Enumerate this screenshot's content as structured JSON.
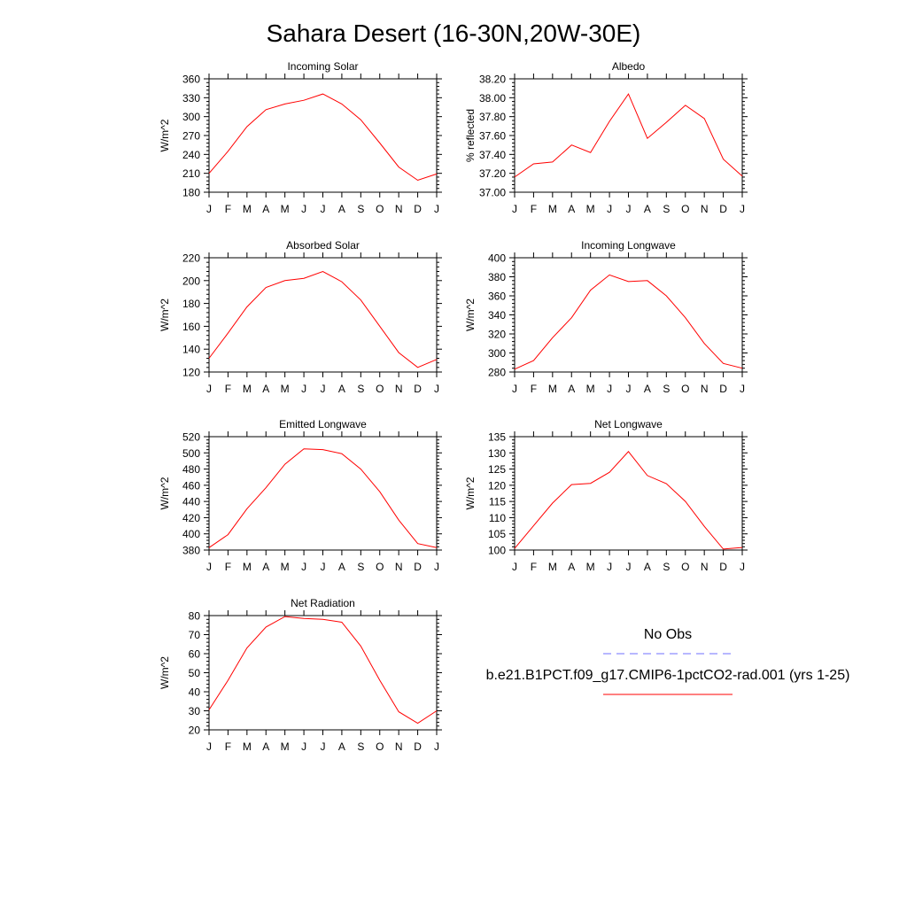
{
  "title": "Sahara Desert (16-30N,20W-30E)",
  "colors": {
    "model": "#ff0000",
    "obs": "#6f6fff",
    "axis": "#000000"
  },
  "legend": {
    "obs_label": "No Obs",
    "model_label": "b.e21.B1PCT.f09_g17.CMIP6-1pctCO2-rad.001 (yrs 1-25)"
  },
  "chart_data": [
    {
      "type": "line",
      "title": "Incoming Solar",
      "ylabel": "W/m^2",
      "categories": [
        "J",
        "F",
        "M",
        "A",
        "M",
        "J",
        "J",
        "A",
        "S",
        "O",
        "N",
        "D",
        "J"
      ],
      "ylim": [
        180,
        360
      ],
      "yticks": [
        "180",
        "210",
        "240",
        "270",
        "300",
        "330",
        "360"
      ],
      "series": [
        {
          "values": [
            210,
            245,
            284,
            311,
            320,
            326,
            336,
            320,
            295,
            258,
            220,
            199,
            209
          ]
        }
      ]
    },
    {
      "type": "line",
      "title": "Albedo",
      "ylabel": "% reflected",
      "categories": [
        "J",
        "F",
        "M",
        "A",
        "M",
        "J",
        "J",
        "A",
        "S",
        "O",
        "N",
        "D",
        "J"
      ],
      "ylim": [
        37.0,
        38.2
      ],
      "yticks": [
        "37.00",
        "37.20",
        "37.40",
        "37.60",
        "37.80",
        "38.00",
        "38.20"
      ],
      "series": [
        {
          "values": [
            37.16,
            37.3,
            37.32,
            37.5,
            37.42,
            37.75,
            38.04,
            37.57,
            37.74,
            37.92,
            37.78,
            37.35,
            37.17
          ]
        }
      ]
    },
    {
      "type": "line",
      "title": "Absorbed Solar",
      "ylabel": "W/m^2",
      "categories": [
        "J",
        "F",
        "M",
        "A",
        "M",
        "J",
        "J",
        "A",
        "S",
        "O",
        "N",
        "D",
        "J"
      ],
      "ylim": [
        120,
        220
      ],
      "yticks": [
        "120",
        "140",
        "160",
        "180",
        "200",
        "220"
      ],
      "series": [
        {
          "values": [
            132,
            154,
            177,
            194,
            200,
            202,
            208,
            199,
            183,
            160,
            137,
            124,
            131
          ]
        }
      ]
    },
    {
      "type": "line",
      "title": "Incoming Longwave",
      "ylabel": "W/m^2",
      "categories": [
        "J",
        "F",
        "M",
        "A",
        "M",
        "J",
        "J",
        "A",
        "S",
        "O",
        "N",
        "D",
        "J"
      ],
      "ylim": [
        280,
        400
      ],
      "yticks": [
        "280",
        "300",
        "320",
        "340",
        "360",
        "380",
        "400"
      ],
      "series": [
        {
          "values": [
            283,
            292,
            316,
            337,
            366,
            382,
            375,
            376,
            360,
            337,
            310,
            289,
            284
          ]
        }
      ]
    },
    {
      "type": "line",
      "title": "Emitted Longwave",
      "ylabel": "W/m^2",
      "categories": [
        "J",
        "F",
        "M",
        "A",
        "M",
        "J",
        "J",
        "A",
        "S",
        "O",
        "N",
        "D",
        "J"
      ],
      "ylim": [
        380,
        520
      ],
      "yticks": [
        "380",
        "400",
        "420",
        "440",
        "460",
        "480",
        "500",
        "520"
      ],
      "series": [
        {
          "values": [
            383,
            399,
            431,
            457,
            486,
            505,
            504,
            499,
            480,
            452,
            417,
            388,
            383
          ]
        }
      ]
    },
    {
      "type": "line",
      "title": "Net Longwave",
      "ylabel": "W/m^2",
      "categories": [
        "J",
        "F",
        "M",
        "A",
        "M",
        "J",
        "J",
        "A",
        "S",
        "O",
        "N",
        "D",
        "J"
      ],
      "ylim": [
        100,
        135
      ],
      "yticks": [
        "100",
        "105",
        "110",
        "115",
        "120",
        "125",
        "130",
        "135"
      ],
      "series": [
        {
          "values": [
            100.5,
            107.5,
            114.5,
            120.2,
            120.6,
            124,
            130.4,
            123,
            120.5,
            115,
            107.3,
            100.3,
            100.8
          ]
        }
      ]
    },
    {
      "type": "line",
      "title": "Net Radiation",
      "ylabel": "W/m^2",
      "categories": [
        "J",
        "F",
        "M",
        "A",
        "M",
        "J",
        "J",
        "A",
        "S",
        "O",
        "N",
        "D",
        "J"
      ],
      "ylim": [
        20,
        80
      ],
      "yticks": [
        "20",
        "30",
        "40",
        "50",
        "60",
        "70",
        "80"
      ],
      "series": [
        {
          "values": [
            30.5,
            46,
            63,
            74,
            79.5,
            78.5,
            78,
            76.5,
            64,
            46,
            29.5,
            23.5,
            30
          ]
        }
      ]
    }
  ]
}
